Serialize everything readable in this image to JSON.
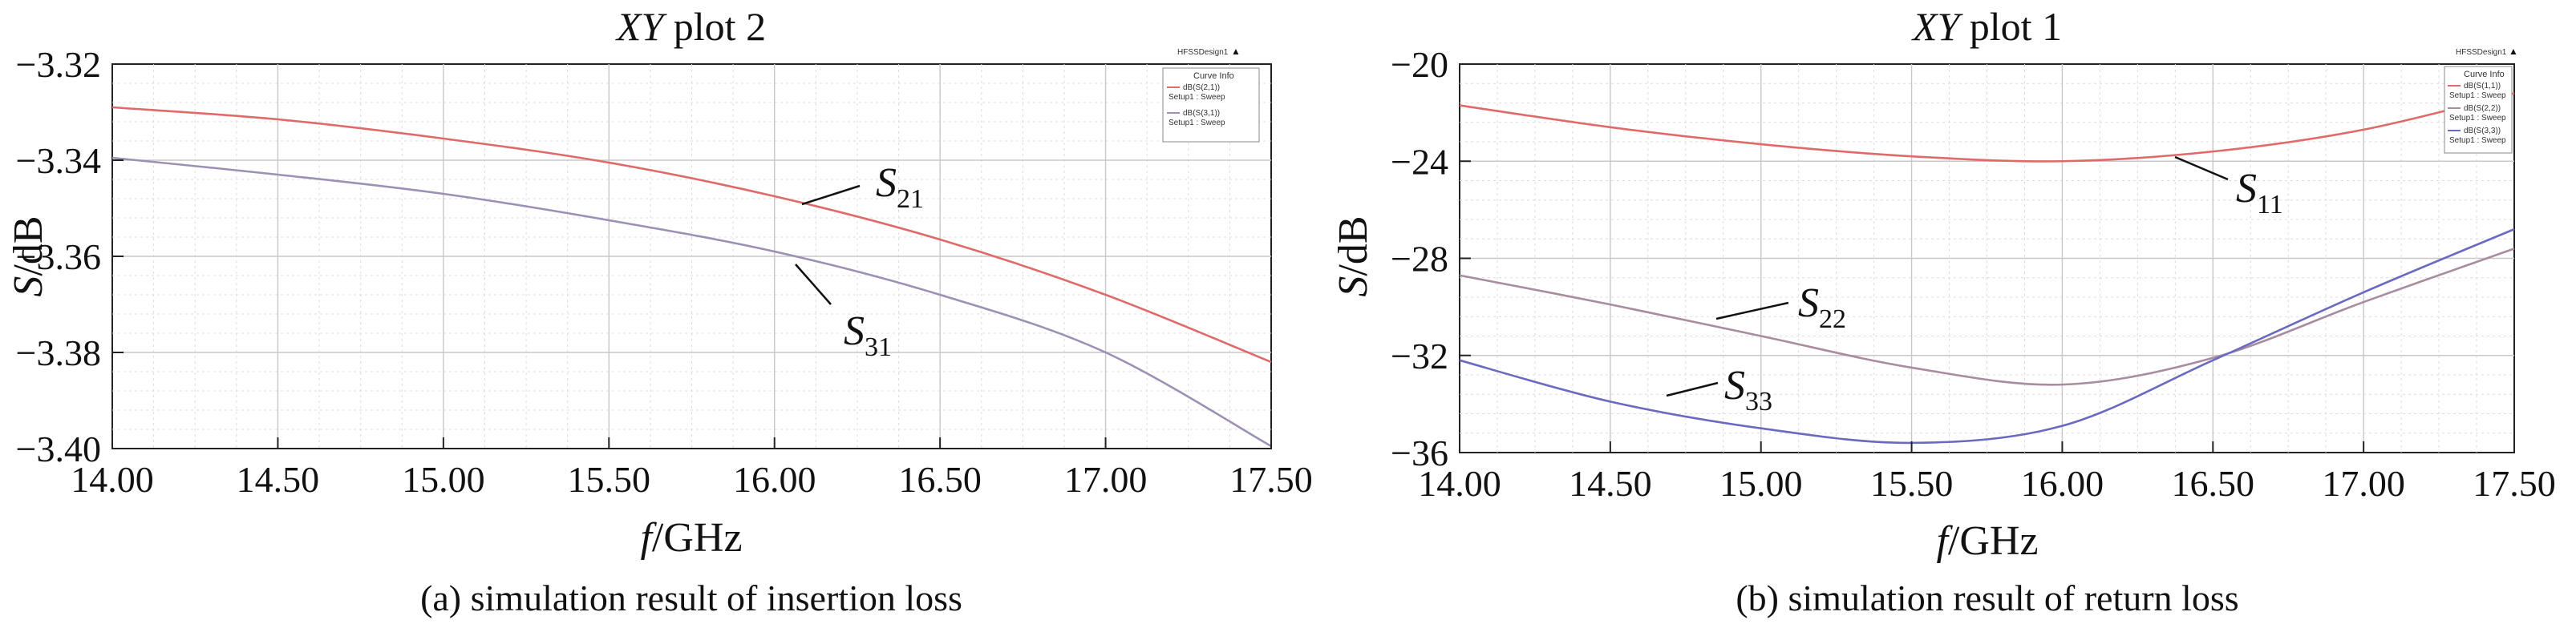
{
  "chart_data": [
    {
      "type": "line",
      "title_italic": "XY",
      "title_rest": " plot 2",
      "design_label": "HFSSDesign1",
      "legend_header": "Curve Info",
      "caption": "(a) simulation result of insertion loss",
      "ylabel_italic": "S",
      "ylabel_rest": "/dB",
      "xlabel_italic": "f",
      "xlabel_rest": "/GHz",
      "xlim": [
        14.0,
        17.5
      ],
      "ylim": [
        -3.4,
        -3.32
      ],
      "xticks": [
        "14.00",
        "14.50",
        "15.00",
        "15.50",
        "16.00",
        "16.50",
        "17.00",
        "17.50"
      ],
      "yticks": [
        "−3.32",
        "−3.34",
        "−3.36",
        "−3.38",
        "−3.40"
      ],
      "grid": true,
      "legend_position": "top-right",
      "series": [
        {
          "name": "S21",
          "legend_name": "dB(S(2,1))",
          "legend_setup": "Setup1 : Sweep",
          "label_main": "S",
          "label_sub": "21",
          "color": "#e06a6a",
          "x": [
            14.0,
            14.5,
            15.0,
            15.5,
            16.0,
            16.5,
            17.0,
            17.5
          ],
          "y": [
            -3.329,
            -3.3315,
            -3.3355,
            -3.3405,
            -3.3475,
            -3.3565,
            -3.368,
            -3.382
          ]
        },
        {
          "name": "S31",
          "legend_name": "dB(S(3,1))",
          "legend_setup": "Setup1 : Sweep",
          "label_main": "S",
          "label_sub": "31",
          "color": "#9c90b4",
          "x": [
            14.0,
            14.5,
            15.0,
            15.5,
            16.0,
            16.5,
            17.0,
            17.5
          ],
          "y": [
            -3.3395,
            -3.343,
            -3.347,
            -3.3525,
            -3.359,
            -3.368,
            -3.38,
            -3.3995
          ]
        }
      ]
    },
    {
      "type": "line",
      "title_italic": "XY",
      "title_rest": " plot 1",
      "design_label": "HFSSDesign1",
      "legend_header": "Curve Info",
      "caption": "(b) simulation result of return loss",
      "ylabel_italic": "S",
      "ylabel_rest": "/dB",
      "xlabel_italic": "f",
      "xlabel_rest": "/GHz",
      "xlim": [
        14.0,
        17.5
      ],
      "ylim": [
        -36,
        -20
      ],
      "xticks": [
        "14.00",
        "14.50",
        "15.00",
        "15.50",
        "16.00",
        "16.50",
        "17.00",
        "17.50"
      ],
      "yticks": [
        "−20",
        "−24",
        "−28",
        "−32",
        "−36"
      ],
      "grid": true,
      "legend_position": "top-right",
      "series": [
        {
          "name": "S11",
          "legend_name": "dB(S(1,1))",
          "legend_setup": "Setup1 : Sweep",
          "label_main": "S",
          "label_sub": "11",
          "color": "#e06a6a",
          "x": [
            14.0,
            14.5,
            15.0,
            15.5,
            16.0,
            16.5,
            17.0,
            17.5
          ],
          "y": [
            -21.7,
            -22.6,
            -23.3,
            -23.8,
            -24.0,
            -23.6,
            -22.7,
            -21.2
          ]
        },
        {
          "name": "S22",
          "legend_name": "dB(S(2,2))",
          "legend_setup": "Setup1 : Sweep",
          "label_main": "S",
          "label_sub": "22",
          "color": "#a88ca0",
          "x": [
            14.0,
            14.5,
            15.0,
            15.5,
            16.0,
            16.5,
            17.0,
            17.5
          ],
          "y": [
            -28.7,
            -29.9,
            -31.2,
            -32.5,
            -33.2,
            -32.1,
            -29.8,
            -27.6
          ]
        },
        {
          "name": "S33",
          "legend_name": "dB(S(3,3))",
          "legend_setup": "Setup1 : Sweep",
          "label_main": "S",
          "label_sub": "33",
          "color": "#6a6ac0",
          "x": [
            14.0,
            14.5,
            15.0,
            15.5,
            16.0,
            16.5,
            17.0,
            17.5
          ],
          "y": [
            -32.2,
            -33.9,
            -35.0,
            -35.6,
            -34.9,
            -32.2,
            -29.4,
            -26.8
          ]
        }
      ]
    }
  ]
}
